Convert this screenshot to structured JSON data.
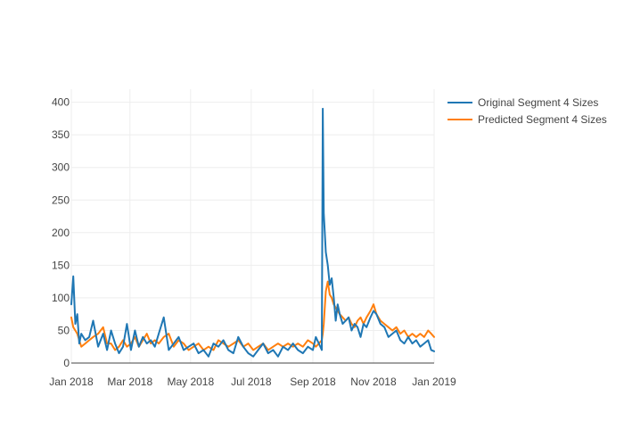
{
  "chart_data": {
    "type": "line",
    "title": "",
    "xlabel": "",
    "ylabel": "",
    "xlim": [
      "2018-01-01",
      "2019-01-01"
    ],
    "ylim": [
      0,
      420
    ],
    "x_ticks": [
      {
        "date": "2018-01-01",
        "label": "Jan 2018"
      },
      {
        "date": "2018-03-01",
        "label": "Mar 2018"
      },
      {
        "date": "2018-05-01",
        "label": "May 2018"
      },
      {
        "date": "2018-07-01",
        "label": "Jul 2018"
      },
      {
        "date": "2018-09-01",
        "label": "Sep 2018"
      },
      {
        "date": "2018-11-01",
        "label": "Nov 2018"
      },
      {
        "date": "2019-01-01",
        "label": "Jan 2019"
      }
    ],
    "y_ticks": [
      0,
      50,
      100,
      150,
      200,
      250,
      300,
      350,
      400
    ],
    "grid": true,
    "legend_position": "top-right",
    "series": [
      {
        "name": "Original Segment 4 Sizes",
        "color": "#1f77b4",
        "x": [
          "2018-01-01",
          "2018-01-03",
          "2018-01-05",
          "2018-01-07",
          "2018-01-09",
          "2018-01-11",
          "2018-01-15",
          "2018-01-19",
          "2018-01-23",
          "2018-01-28",
          "2018-02-02",
          "2018-02-06",
          "2018-02-10",
          "2018-02-14",
          "2018-02-18",
          "2018-02-22",
          "2018-02-26",
          "2018-03-02",
          "2018-03-06",
          "2018-03-10",
          "2018-03-14",
          "2018-03-18",
          "2018-03-22",
          "2018-03-26",
          "2018-03-30",
          "2018-04-04",
          "2018-04-09",
          "2018-04-14",
          "2018-04-19",
          "2018-04-24",
          "2018-04-29",
          "2018-05-04",
          "2018-05-09",
          "2018-05-14",
          "2018-05-19",
          "2018-05-24",
          "2018-05-29",
          "2018-06-03",
          "2018-06-08",
          "2018-06-13",
          "2018-06-18",
          "2018-06-23",
          "2018-06-28",
          "2018-07-03",
          "2018-07-08",
          "2018-07-13",
          "2018-07-18",
          "2018-07-23",
          "2018-07-28",
          "2018-08-02",
          "2018-08-07",
          "2018-08-12",
          "2018-08-17",
          "2018-08-22",
          "2018-08-27",
          "2018-09-01",
          "2018-09-04",
          "2018-09-07",
          "2018-09-10",
          "2018-09-11",
          "2018-09-12",
          "2018-09-14",
          "2018-09-16",
          "2018-09-18",
          "2018-09-20",
          "2018-09-22",
          "2018-09-24",
          "2018-09-26",
          "2018-09-28",
          "2018-10-01",
          "2018-10-04",
          "2018-10-07",
          "2018-10-10",
          "2018-10-13",
          "2018-10-16",
          "2018-10-19",
          "2018-10-22",
          "2018-10-25",
          "2018-10-29",
          "2018-11-01",
          "2018-11-04",
          "2018-11-08",
          "2018-11-12",
          "2018-11-16",
          "2018-11-20",
          "2018-11-24",
          "2018-11-28",
          "2018-12-02",
          "2018-12-06",
          "2018-12-10",
          "2018-12-14",
          "2018-12-18",
          "2018-12-22",
          "2018-12-26",
          "2018-12-29",
          "2019-01-01"
        ],
        "y": [
          90,
          133,
          60,
          75,
          30,
          45,
          35,
          40,
          65,
          25,
          45,
          20,
          50,
          30,
          15,
          25,
          60,
          20,
          50,
          25,
          40,
          30,
          35,
          25,
          45,
          70,
          20,
          30,
          40,
          20,
          25,
          30,
          15,
          20,
          10,
          30,
          25,
          35,
          20,
          15,
          40,
          25,
          15,
          10,
          20,
          30,
          15,
          20,
          10,
          25,
          20,
          30,
          20,
          15,
          25,
          20,
          40,
          30,
          20,
          390,
          230,
          170,
          150,
          120,
          130,
          100,
          65,
          90,
          75,
          60,
          65,
          70,
          50,
          60,
          55,
          40,
          60,
          55,
          70,
          80,
          75,
          60,
          55,
          40,
          45,
          50,
          35,
          30,
          40,
          30,
          35,
          25,
          30,
          35,
          20,
          18
        ]
      },
      {
        "name": "Predicted Segment 4 Sizes",
        "color": "#ff7f0e",
        "x": [
          "2018-01-01",
          "2018-01-03",
          "2018-01-05",
          "2018-01-07",
          "2018-01-09",
          "2018-01-11",
          "2018-01-15",
          "2018-01-19",
          "2018-01-23",
          "2018-01-28",
          "2018-02-02",
          "2018-02-06",
          "2018-02-10",
          "2018-02-14",
          "2018-02-18",
          "2018-02-22",
          "2018-02-26",
          "2018-03-02",
          "2018-03-06",
          "2018-03-10",
          "2018-03-14",
          "2018-03-18",
          "2018-03-22",
          "2018-03-26",
          "2018-03-30",
          "2018-04-04",
          "2018-04-09",
          "2018-04-14",
          "2018-04-19",
          "2018-04-24",
          "2018-04-29",
          "2018-05-04",
          "2018-05-09",
          "2018-05-14",
          "2018-05-19",
          "2018-05-24",
          "2018-05-29",
          "2018-06-03",
          "2018-06-08",
          "2018-06-13",
          "2018-06-18",
          "2018-06-23",
          "2018-06-28",
          "2018-07-03",
          "2018-07-08",
          "2018-07-13",
          "2018-07-18",
          "2018-07-23",
          "2018-07-28",
          "2018-08-02",
          "2018-08-07",
          "2018-08-12",
          "2018-08-17",
          "2018-08-22",
          "2018-08-27",
          "2018-09-01",
          "2018-09-04",
          "2018-09-07",
          "2018-09-10",
          "2018-09-11",
          "2018-09-12",
          "2018-09-14",
          "2018-09-16",
          "2018-09-18",
          "2018-09-20",
          "2018-09-22",
          "2018-09-24",
          "2018-09-26",
          "2018-09-28",
          "2018-10-01",
          "2018-10-04",
          "2018-10-07",
          "2018-10-10",
          "2018-10-13",
          "2018-10-16",
          "2018-10-19",
          "2018-10-22",
          "2018-10-25",
          "2018-10-29",
          "2018-11-01",
          "2018-11-04",
          "2018-11-08",
          "2018-11-12",
          "2018-11-16",
          "2018-11-20",
          "2018-11-24",
          "2018-11-28",
          "2018-12-02",
          "2018-12-06",
          "2018-12-10",
          "2018-12-14",
          "2018-12-18",
          "2018-12-22",
          "2018-12-26",
          "2018-12-29",
          "2019-01-01"
        ],
        "y": [
          70,
          55,
          50,
          45,
          35,
          25,
          30,
          35,
          40,
          45,
          55,
          30,
          30,
          20,
          25,
          35,
          25,
          30,
          40,
          25,
          35,
          45,
          30,
          35,
          30,
          40,
          45,
          25,
          35,
          30,
          20,
          25,
          30,
          20,
          25,
          20,
          35,
          30,
          25,
          30,
          35,
          25,
          30,
          20,
          25,
          30,
          20,
          25,
          30,
          25,
          30,
          25,
          30,
          25,
          35,
          30,
          25,
          30,
          35,
          45,
          60,
          110,
          125,
          105,
          100,
          90,
          85,
          80,
          75,
          70,
          65,
          70,
          60,
          55,
          65,
          70,
          60,
          70,
          80,
          90,
          75,
          65,
          60,
          55,
          50,
          55,
          45,
          50,
          40,
          45,
          40,
          45,
          40,
          50,
          45,
          40
        ]
      }
    ]
  }
}
